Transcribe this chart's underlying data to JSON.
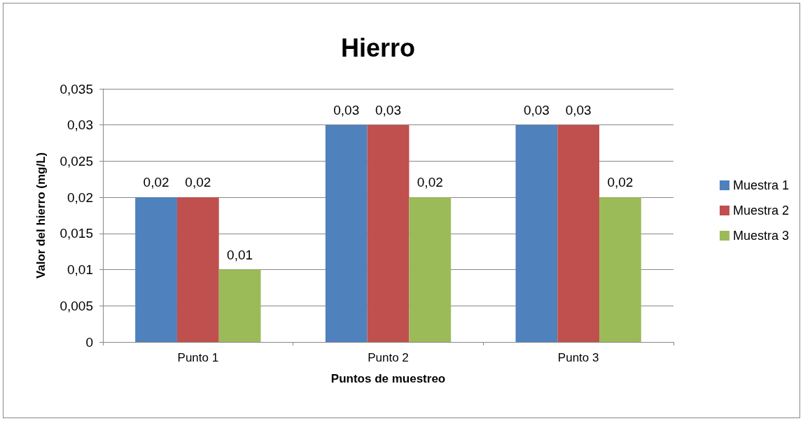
{
  "chart_data": {
    "type": "bar",
    "title": "Hierro",
    "xlabel": "Puntos de muestreo",
    "ylabel": "Valor del hierro (mg/L)",
    "categories": [
      "Punto 1",
      "Punto 2",
      "Punto 3"
    ],
    "series": [
      {
        "name": "Muestra 1",
        "color": "#4f81bd",
        "values": [
          0.02,
          0.03,
          0.03
        ],
        "value_labels": [
          "0,02",
          "0,03",
          "0,03"
        ]
      },
      {
        "name": "Muestra 2",
        "color": "#c0504d",
        "values": [
          0.02,
          0.03,
          0.03
        ],
        "value_labels": [
          "0,02",
          "0,03",
          "0,03"
        ]
      },
      {
        "name": "Muestra 3",
        "color": "#9bbb59",
        "values": [
          0.01,
          0.02,
          0.02
        ],
        "value_labels": [
          "0,01",
          "0,02",
          "0,02"
        ]
      }
    ],
    "ylim": [
      0,
      0.035
    ],
    "yticks": [
      {
        "value": 0,
        "label": "0"
      },
      {
        "value": 0.005,
        "label": "0,005"
      },
      {
        "value": 0.01,
        "label": "0,01"
      },
      {
        "value": 0.015,
        "label": "0,015"
      },
      {
        "value": 0.02,
        "label": "0,02"
      },
      {
        "value": 0.025,
        "label": "0,025"
      },
      {
        "value": 0.03,
        "label": "0,03"
      },
      {
        "value": 0.035,
        "label": "0,035"
      }
    ],
    "grid": "y",
    "legend": "right"
  }
}
